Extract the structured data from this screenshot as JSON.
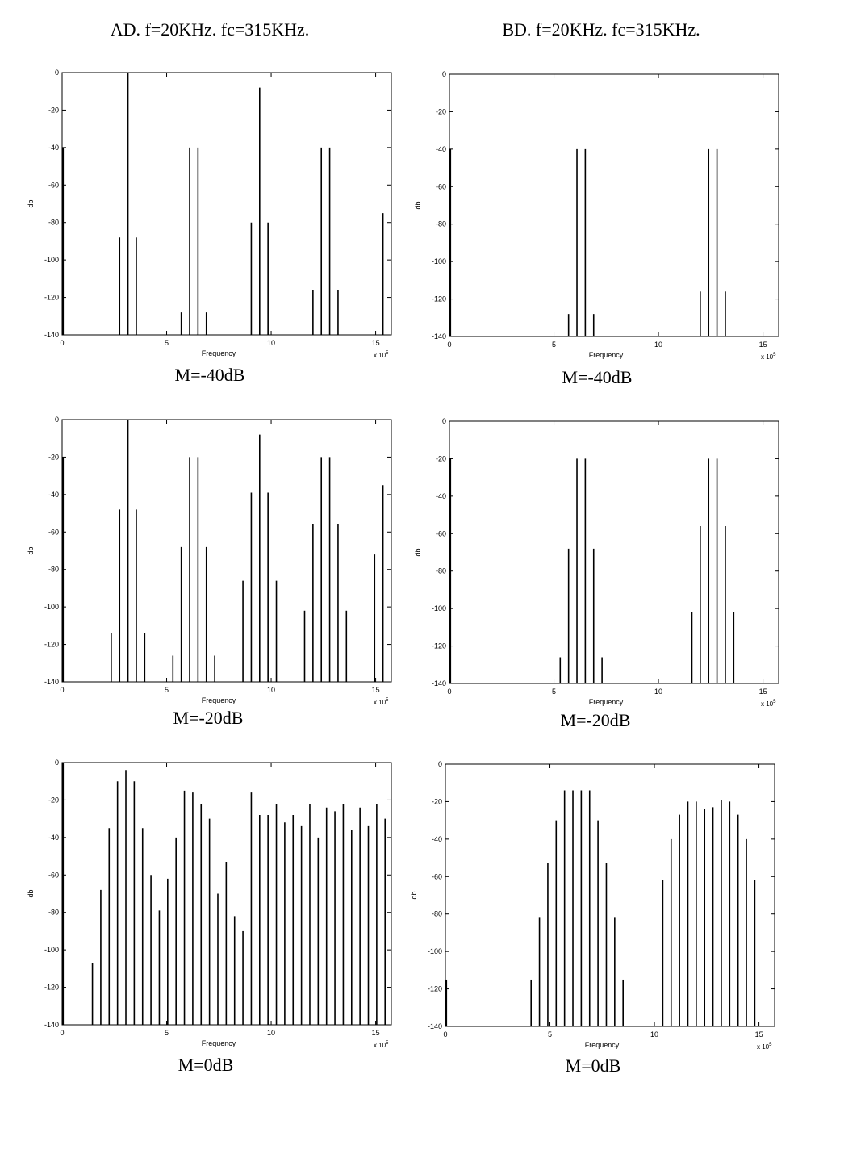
{
  "titles": {
    "left": "AD. f=20KHz. fc=315KHz.",
    "right": "BD. f=20KHz. fc=315KHz."
  },
  "captions": [
    "M=-40dB",
    "M=-40dB",
    "M=-20dB",
    "M=-20dB",
    "M=0dB",
    "M=0dB"
  ],
  "chart_data": [
    {
      "type": "bar",
      "title": "AD. f=20KHz. fc=315KHz.",
      "caption": "M=-40dB",
      "xlabel": "Frequency",
      "ylabel": "db",
      "x_multiplier_label": "x 10^5",
      "xlim": [
        0,
        15.75
      ],
      "ylim": [
        -140,
        0
      ],
      "xticks": [
        0,
        5,
        10,
        15
      ],
      "yticks": [
        0,
        -20,
        -40,
        -60,
        -80,
        -100,
        -120,
        -140
      ],
      "series": [
        {
          "x": [
            0.05,
            2.75,
            3.15,
            3.55,
            5.7,
            6.1,
            6.5,
            6.9,
            9.05,
            9.45,
            9.85,
            12.0,
            12.4,
            12.8,
            13.2,
            15.35
          ],
          "values": [
            -40,
            -88,
            0,
            -88,
            -128,
            -40,
            -40,
            -128,
            -80,
            -8,
            -80,
            -116,
            -40,
            -40,
            -116,
            -75
          ]
        }
      ]
    },
    {
      "type": "bar",
      "title": "BD. f=20KHz. fc=315KHz.",
      "caption": "M=-40dB",
      "xlabel": "Frequency",
      "ylabel": "db",
      "x_multiplier_label": "x 10^5",
      "xlim": [
        0,
        15.75
      ],
      "ylim": [
        -140,
        0
      ],
      "xticks": [
        0,
        5,
        10,
        15
      ],
      "yticks": [
        0,
        -20,
        -40,
        -60,
        -80,
        -100,
        -120,
        -140
      ],
      "series": [
        {
          "x": [
            0.05,
            5.7,
            6.1,
            6.5,
            6.9,
            12.0,
            12.4,
            12.8,
            13.2
          ],
          "values": [
            -40,
            -128,
            -40,
            -40,
            -128,
            -116,
            -40,
            -40,
            -116
          ]
        }
      ]
    },
    {
      "type": "bar",
      "title": "AD. f=20KHz. fc=315KHz.",
      "caption": "M=-20dB",
      "xlabel": "Frequency",
      "ylabel": "db",
      "x_multiplier_label": "x 10^5",
      "xlim": [
        0,
        15.75
      ],
      "ylim": [
        -140,
        0
      ],
      "xticks": [
        0,
        5,
        10,
        15
      ],
      "yticks": [
        0,
        -20,
        -40,
        -60,
        -80,
        -100,
        -120,
        -140
      ],
      "series": [
        {
          "x": [
            0.05,
            2.35,
            2.75,
            3.15,
            3.55,
            3.95,
            5.3,
            5.7,
            6.1,
            6.5,
            6.9,
            7.3,
            8.65,
            9.05,
            9.45,
            9.85,
            10.25,
            11.6,
            12.0,
            12.4,
            12.8,
            13.2,
            13.6,
            14.95,
            15.35
          ],
          "values": [
            -20,
            -114,
            -48,
            0,
            -48,
            -114,
            -126,
            -68,
            -20,
            -20,
            -68,
            -126,
            -86,
            -39,
            -8,
            -39,
            -86,
            -102,
            -56,
            -20,
            -20,
            -56,
            -102,
            -72,
            -35
          ]
        }
      ]
    },
    {
      "type": "bar",
      "title": "BD. f=20KHz. fc=315KHz.",
      "caption": "M=-20dB",
      "xlabel": "Frequency",
      "ylabel": "db",
      "x_multiplier_label": "x 10^5",
      "xlim": [
        0,
        15.75
      ],
      "ylim": [
        -140,
        0
      ],
      "xticks": [
        0,
        5,
        10,
        15
      ],
      "yticks": [
        0,
        -20,
        -40,
        -60,
        -80,
        -100,
        -120,
        -140
      ],
      "series": [
        {
          "x": [
            0.05,
            5.3,
            5.7,
            6.1,
            6.5,
            6.9,
            7.3,
            11.6,
            12.0,
            12.4,
            12.8,
            13.2,
            13.6
          ],
          "values": [
            -20,
            -126,
            -68,
            -20,
            -20,
            -68,
            -126,
            -102,
            -56,
            -20,
            -20,
            -56,
            -102
          ]
        }
      ]
    },
    {
      "type": "bar",
      "title": "AD. f=20KHz. fc=315KHz.",
      "caption": "M=0dB",
      "xlabel": "Frequency",
      "ylabel": "db",
      "x_multiplier_label": "x 10^5",
      "xlim": [
        0,
        15.75
      ],
      "ylim": [
        -140,
        0
      ],
      "xticks": [
        0,
        5,
        10,
        15
      ],
      "yticks": [
        0,
        -20,
        -40,
        -60,
        -80,
        -100,
        -120,
        -140
      ],
      "series": [
        {
          "x": [
            0.05,
            1.45,
            1.85,
            2.25,
            2.65,
            3.05,
            3.45,
            3.85,
            4.25,
            4.65,
            5.05,
            5.45,
            5.85,
            6.25,
            6.65,
            7.05,
            7.45,
            7.85,
            8.25,
            8.65,
            9.05,
            9.45,
            9.85,
            10.25,
            10.65,
            11.05,
            11.45,
            11.85,
            12.25,
            12.65,
            13.05,
            13.45,
            13.85,
            14.25,
            14.65,
            15.05,
            15.45
          ],
          "values": [
            0,
            -107,
            -68,
            -35,
            -10,
            -4,
            -10,
            -35,
            -60,
            -79,
            -62,
            -40,
            -15,
            -16,
            -22,
            -30,
            -70,
            -53,
            -82,
            -90,
            -16,
            -28,
            -28,
            -22,
            -32,
            -28,
            -34,
            -22,
            -40,
            -24,
            -26,
            -22,
            -36,
            -24,
            -34,
            -22,
            -30
          ]
        }
      ]
    },
    {
      "type": "bar",
      "title": "BD. f=20KHz. fc=315KHz.",
      "caption": "M=0dB",
      "xlabel": "Frequency",
      "ylabel": "db",
      "x_multiplier_label": "x 10^5",
      "xlim": [
        0,
        15.75
      ],
      "ylim": [
        -140,
        0
      ],
      "xticks": [
        0,
        5,
        10,
        15
      ],
      "yticks": [
        0,
        -20,
        -40,
        -60,
        -80,
        -100,
        -120,
        -140
      ],
      "series": [
        {
          "x": [
            0.05,
            4.1,
            4.5,
            4.9,
            5.3,
            5.7,
            6.1,
            6.5,
            6.9,
            7.3,
            7.7,
            8.1,
            8.5,
            10.4,
            10.8,
            11.2,
            11.6,
            12.0,
            12.4,
            12.8,
            13.2,
            13.6,
            14.0,
            14.4,
            14.8
          ],
          "values": [
            -115,
            -115,
            -82,
            -53,
            -30,
            -14,
            -14,
            -14,
            -14,
            -30,
            -53,
            -82,
            -115,
            -62,
            -40,
            -27,
            -20,
            -20,
            -24,
            -23,
            -19,
            -20,
            -27,
            -40,
            -62
          ]
        }
      ]
    }
  ]
}
